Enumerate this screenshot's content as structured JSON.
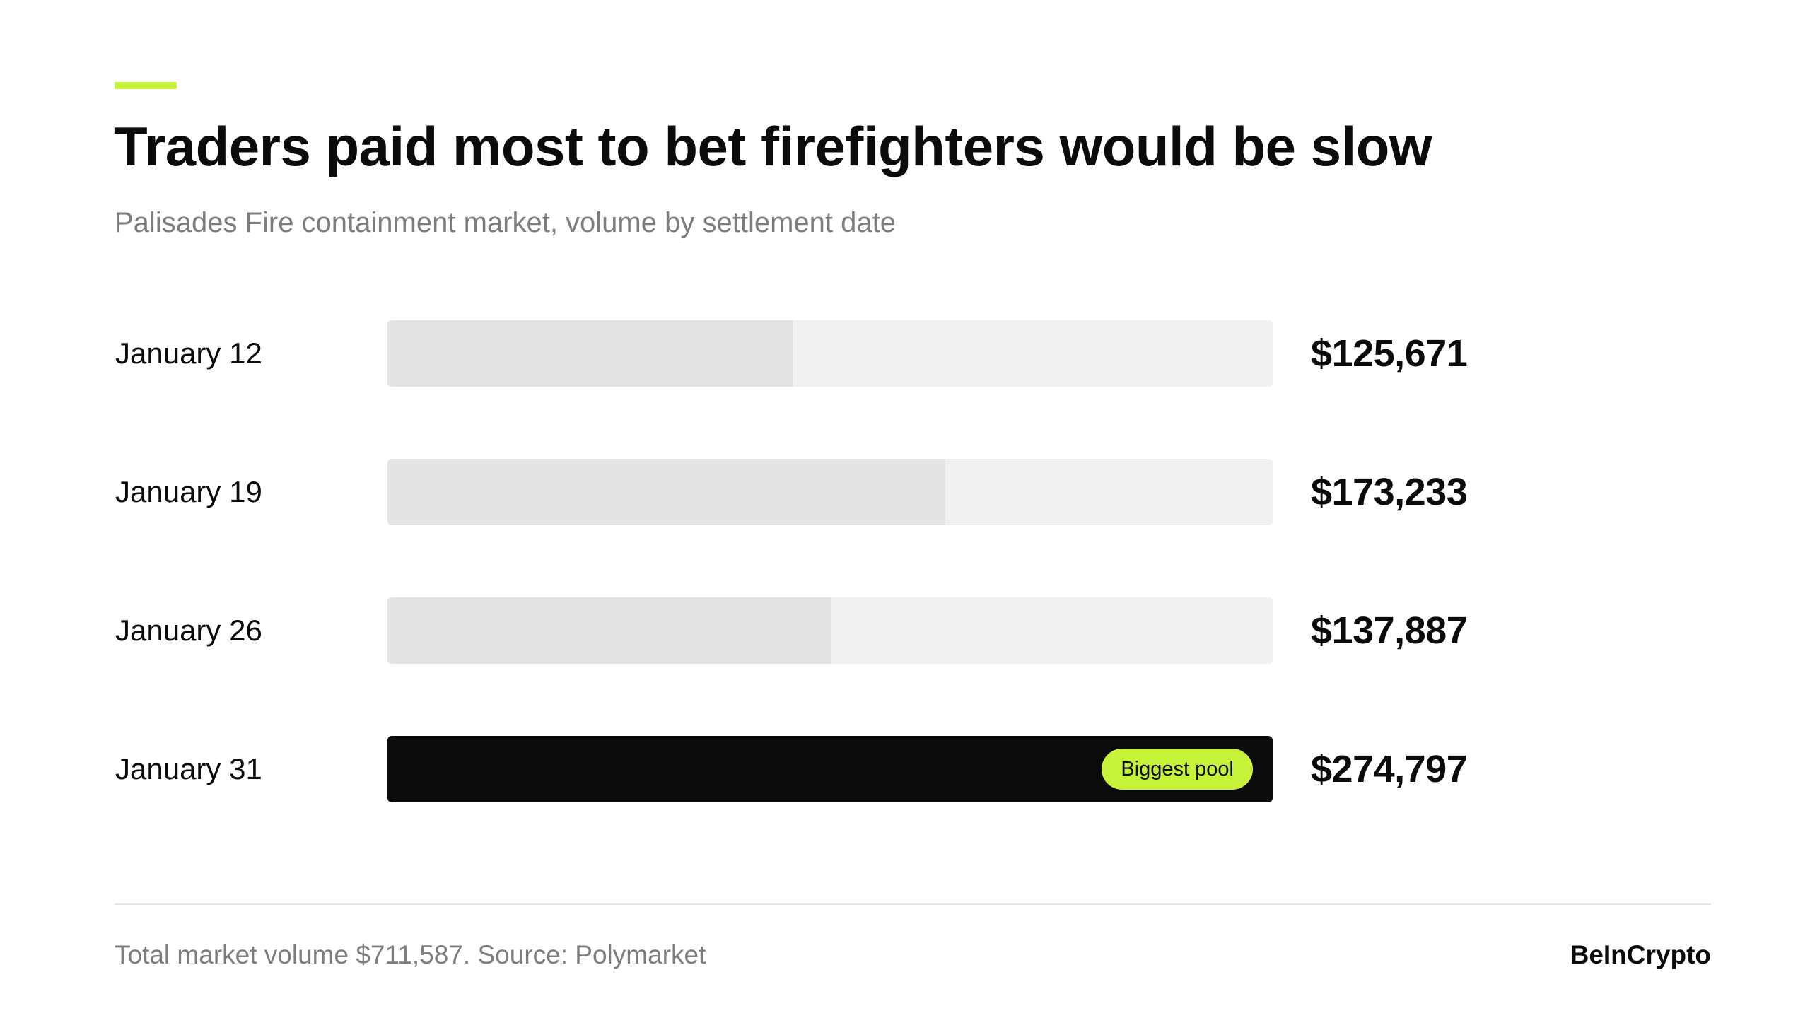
{
  "header": {
    "title": "Traders paid most to bet firefighters would be slow",
    "subtitle": "Palisades Fire containment market, volume by settlement date"
  },
  "colors": {
    "accent": "#c6f23a",
    "track": "#f0f0f0",
    "bar": "#e4e4e4",
    "highlight_bar": "#0b0b0b",
    "text": "#0b0b0b",
    "muted_text": "#7d7d7d"
  },
  "chart_data": {
    "type": "bar",
    "orientation": "horizontal",
    "title": "Traders paid most to bet firefighters would be slow",
    "subtitle": "Palisades Fire containment market, volume by settlement date",
    "categories": [
      "January 12",
      "January 19",
      "January 26",
      "January 31"
    ],
    "values": [
      125671,
      173233,
      137887,
      274797
    ],
    "value_labels": [
      "$125,671",
      "$173,233",
      "$137,887",
      "$274,797"
    ],
    "highlight_index": 3,
    "highlight_label": "Biggest pool",
    "xlim": [
      0,
      274797
    ],
    "grid": false,
    "legend": "none"
  },
  "footer": {
    "note": "Total market volume $711,587.  Source: Polymarket",
    "brand": "BeInCrypto"
  }
}
